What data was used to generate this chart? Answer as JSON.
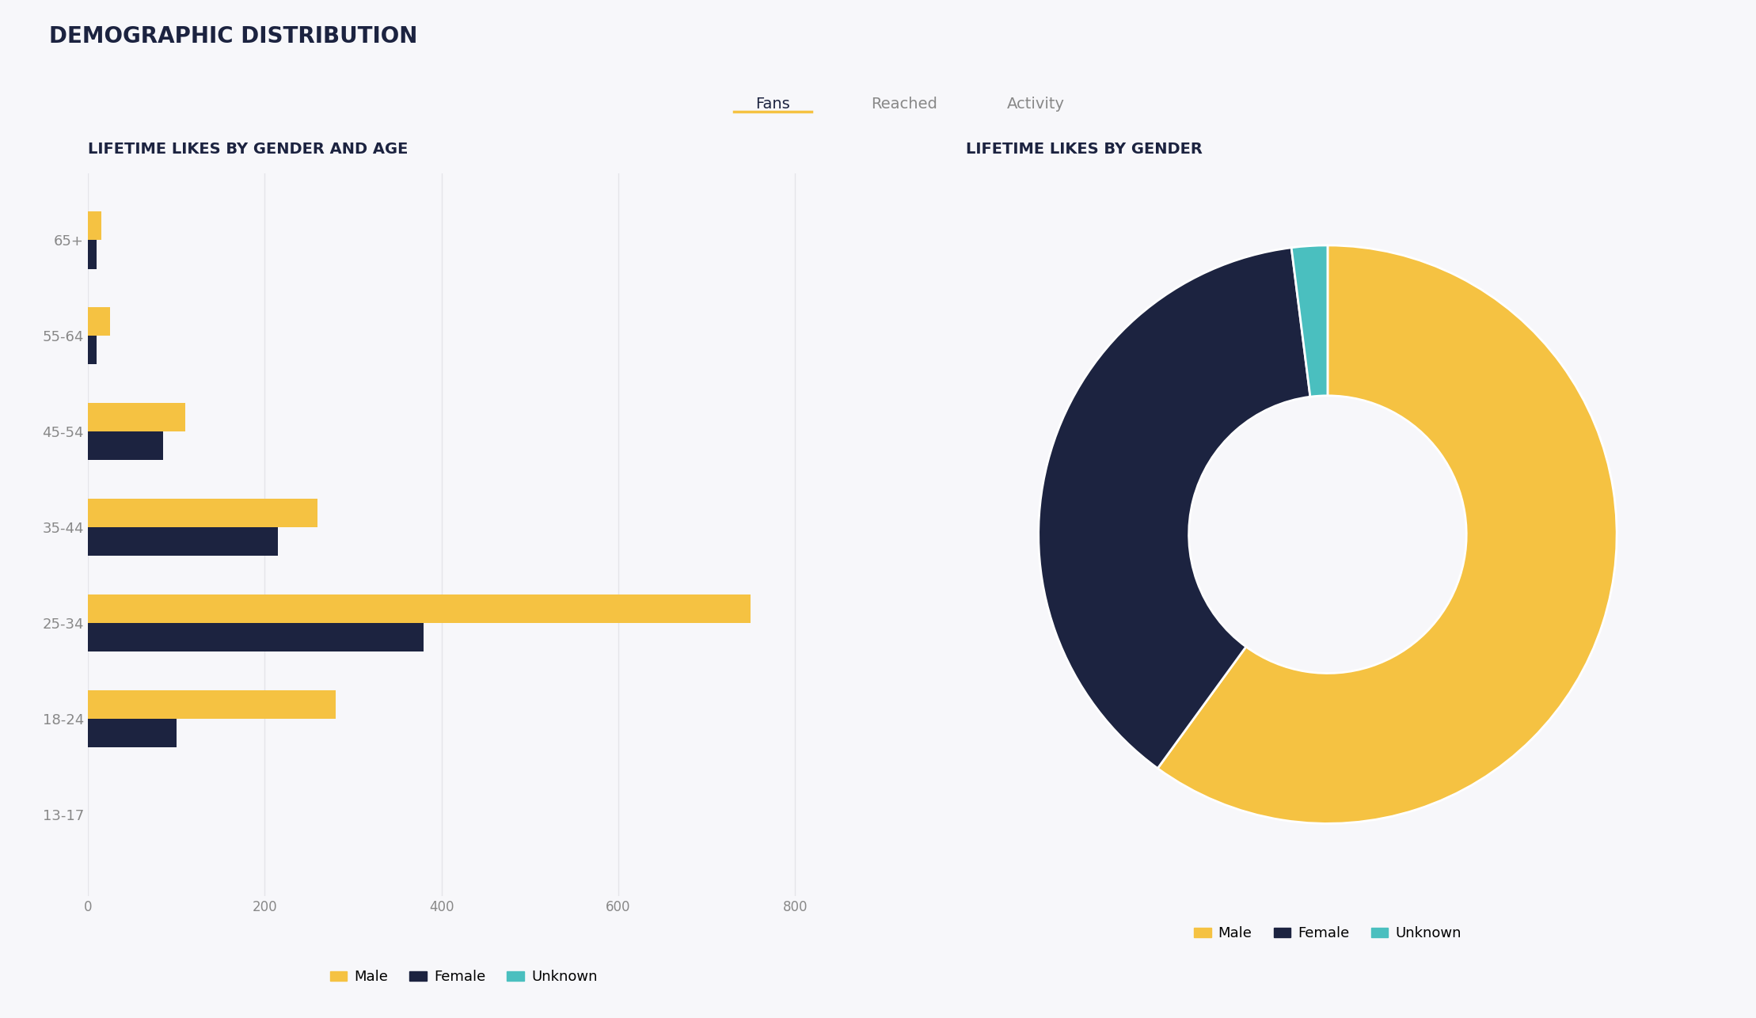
{
  "title": "DEMOGRAPHIC DISTRIBUTION",
  "tabs": [
    "Fans",
    "Reached",
    "Activity"
  ],
  "active_tab": "Fans",
  "bar_chart_title": "LIFETIME LIKES BY GENDER AND AGE",
  "donut_chart_title": "LIFETIME LIKES BY GENDER",
  "age_groups": [
    "13-17",
    "18-24",
    "25-34",
    "35-44",
    "45-54",
    "55-64",
    "65+"
  ],
  "male_values": [
    0,
    280,
    750,
    260,
    110,
    25,
    15
  ],
  "female_values": [
    0,
    100,
    380,
    215,
    85,
    10,
    10
  ],
  "unknown_values": [
    0,
    0,
    0,
    0,
    0,
    0,
    0
  ],
  "color_male": "#F5C242",
  "color_female": "#1C2340",
  "color_unknown": "#4ABFBF",
  "donut_male": 60,
  "donut_female": 38,
  "donut_unknown": 2,
  "xlim": [
    0,
    850
  ],
  "xticks": [
    0,
    200,
    400,
    600,
    800
  ],
  "background_color": "#F7F7FA",
  "text_color": "#1C2340",
  "grid_color": "#E5E5EA",
  "legend_labels": [
    "Male",
    "Female",
    "Unknown"
  ],
  "tab_active_color": "#F5C242",
  "tab_inactive_color": "#888888"
}
